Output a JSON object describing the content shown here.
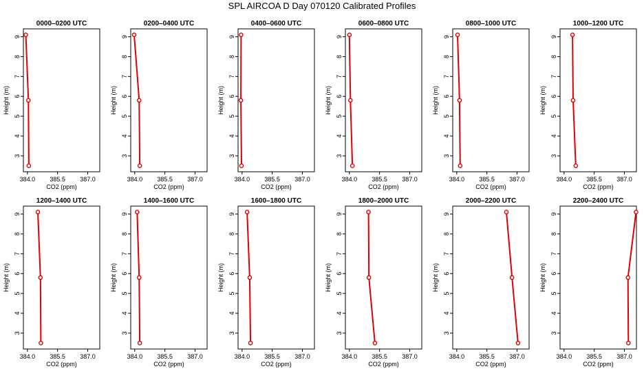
{
  "figure": {
    "title": "SPL AIRCOA D  Day 070120  Calibrated Profiles"
  },
  "colors": {
    "series": "#e00000",
    "axes": "#000000",
    "background": "#ffffff"
  },
  "chart_data": [
    {
      "type": "line",
      "title": "0000–0200 UTC",
      "xlabel": "CO2 (ppm)",
      "ylabel": "Height (m)",
      "xlim": [
        383.8,
        387.6
      ],
      "ylim": [
        2.2,
        9.4
      ],
      "xticks": [
        "384.0",
        "385.5",
        "387.0"
      ],
      "yticks": [
        "3",
        "4",
        "5",
        "6",
        "7",
        "8",
        "9"
      ],
      "x": [
        383.92,
        384.05,
        384.07
      ],
      "y": [
        9.1,
        5.8,
        2.5
      ]
    },
    {
      "type": "line",
      "title": "0200–0400 UTC",
      "xlabel": "CO2 (ppm)",
      "ylabel": "Height (m)",
      "xlim": [
        383.8,
        387.6
      ],
      "ylim": [
        2.2,
        9.4
      ],
      "xticks": [
        "384.0",
        "385.5",
        "387.0"
      ],
      "yticks": [
        "3",
        "4",
        "5",
        "6",
        "7",
        "8",
        "9"
      ],
      "x": [
        383.97,
        384.22,
        384.25
      ],
      "y": [
        9.1,
        5.8,
        2.5
      ]
    },
    {
      "type": "line",
      "title": "0400–0600 UTC",
      "xlabel": "CO2 (ppm)",
      "ylabel": "Height (m)",
      "xlim": [
        383.8,
        387.6
      ],
      "ylim": [
        2.2,
        9.4
      ],
      "xticks": [
        "384.0",
        "385.5",
        "387.0"
      ],
      "yticks": [
        "3",
        "4",
        "5",
        "6",
        "7",
        "8",
        "9"
      ],
      "x": [
        383.95,
        383.94,
        383.97
      ],
      "y": [
        9.1,
        5.8,
        2.5
      ]
    },
    {
      "type": "line",
      "title": "0600–0800 UTC",
      "xlabel": "CO2 (ppm)",
      "ylabel": "Height (m)",
      "xlim": [
        383.8,
        387.6
      ],
      "ylim": [
        2.2,
        9.4
      ],
      "xticks": [
        "384.0",
        "385.5",
        "387.0"
      ],
      "yticks": [
        "3",
        "4",
        "5",
        "6",
        "7",
        "8",
        "9"
      ],
      "x": [
        384.0,
        384.05,
        384.15
      ],
      "y": [
        9.1,
        5.8,
        2.5
      ]
    },
    {
      "type": "line",
      "title": "0800–1000 UTC",
      "xlabel": "CO2 (ppm)",
      "ylabel": "Height (m)",
      "xlim": [
        383.8,
        387.6
      ],
      "ylim": [
        2.2,
        9.4
      ],
      "xticks": [
        "384.0",
        "385.5",
        "387.0"
      ],
      "yticks": [
        "3",
        "4",
        "5",
        "6",
        "7",
        "8",
        "9"
      ],
      "x": [
        384.04,
        384.14,
        384.17
      ],
      "y": [
        9.1,
        5.8,
        2.5
      ]
    },
    {
      "type": "line",
      "title": "1000–1200 UTC",
      "xlabel": "CO2 (ppm)",
      "ylabel": "Height (m)",
      "xlim": [
        383.8,
        387.6
      ],
      "ylim": [
        2.2,
        9.4
      ],
      "xticks": [
        "384.0",
        "385.5",
        "387.0"
      ],
      "yticks": [
        "3",
        "4",
        "5",
        "6",
        "7",
        "8",
        "9"
      ],
      "x": [
        384.42,
        384.45,
        384.58
      ],
      "y": [
        9.1,
        5.8,
        2.5
      ]
    },
    {
      "type": "line",
      "title": "1200–1400 UTC",
      "xlabel": "CO2 (ppm)",
      "ylabel": "Height (m)",
      "xlim": [
        383.8,
        387.6
      ],
      "ylim": [
        2.2,
        9.4
      ],
      "xticks": [
        "384.0",
        "385.5",
        "387.0"
      ],
      "yticks": [
        "3",
        "4",
        "5",
        "6",
        "7",
        "8",
        "9"
      ],
      "x": [
        384.52,
        384.65,
        384.67
      ],
      "y": [
        9.1,
        5.8,
        2.5
      ]
    },
    {
      "type": "line",
      "title": "1400–1600 UTC",
      "xlabel": "CO2 (ppm)",
      "ylabel": "Height (m)",
      "xlim": [
        383.8,
        387.6
      ],
      "ylim": [
        2.2,
        9.4
      ],
      "xticks": [
        "384.0",
        "385.5",
        "387.0"
      ],
      "yticks": [
        "3",
        "4",
        "5",
        "6",
        "7",
        "8",
        "9"
      ],
      "x": [
        384.12,
        384.22,
        384.25
      ],
      "y": [
        9.1,
        5.8,
        2.5
      ]
    },
    {
      "type": "line",
      "title": "1600–1800 UTC",
      "xlabel": "CO2 (ppm)",
      "ylabel": "Height (m)",
      "xlim": [
        383.8,
        387.6
      ],
      "ylim": [
        2.2,
        9.4
      ],
      "xticks": [
        "384.0",
        "385.5",
        "387.0"
      ],
      "yticks": [
        "3",
        "4",
        "5",
        "6",
        "7",
        "8",
        "9"
      ],
      "x": [
        384.25,
        384.38,
        384.42
      ],
      "y": [
        9.1,
        5.8,
        2.5
      ]
    },
    {
      "type": "line",
      "title": "1800–2000 UTC",
      "xlabel": "CO2 (ppm)",
      "ylabel": "Height (m)",
      "xlim": [
        383.8,
        387.6
      ],
      "ylim": [
        2.2,
        9.4
      ],
      "xticks": [
        "384.0",
        "385.5",
        "387.0"
      ],
      "yticks": [
        "3",
        "4",
        "5",
        "6",
        "7",
        "8",
        "9"
      ],
      "x": [
        384.95,
        384.97,
        385.27
      ],
      "y": [
        9.1,
        5.8,
        2.5
      ]
    },
    {
      "type": "line",
      "title": "2000–2200 UTC",
      "xlabel": "CO2 (ppm)",
      "ylabel": "Height (m)",
      "xlim": [
        383.8,
        387.6
      ],
      "ylim": [
        2.2,
        9.4
      ],
      "xticks": [
        "384.0",
        "385.5",
        "387.0"
      ],
      "yticks": [
        "3",
        "4",
        "5",
        "6",
        "7",
        "8",
        "9"
      ],
      "x": [
        386.47,
        386.75,
        387.05
      ],
      "y": [
        9.1,
        5.8,
        2.5
      ]
    },
    {
      "type": "line",
      "title": "2200–2400 UTC",
      "xlabel": "CO2 (ppm)",
      "ylabel": "Height (m)",
      "xlim": [
        383.8,
        387.6
      ],
      "ylim": [
        2.2,
        9.4
      ],
      "xticks": [
        "384.0",
        "385.5",
        "387.0"
      ],
      "yticks": [
        "3",
        "4",
        "5",
        "6",
        "7",
        "8",
        "9"
      ],
      "x": [
        387.58,
        387.18,
        387.2
      ],
      "y": [
        9.1,
        5.8,
        2.5
      ]
    }
  ]
}
